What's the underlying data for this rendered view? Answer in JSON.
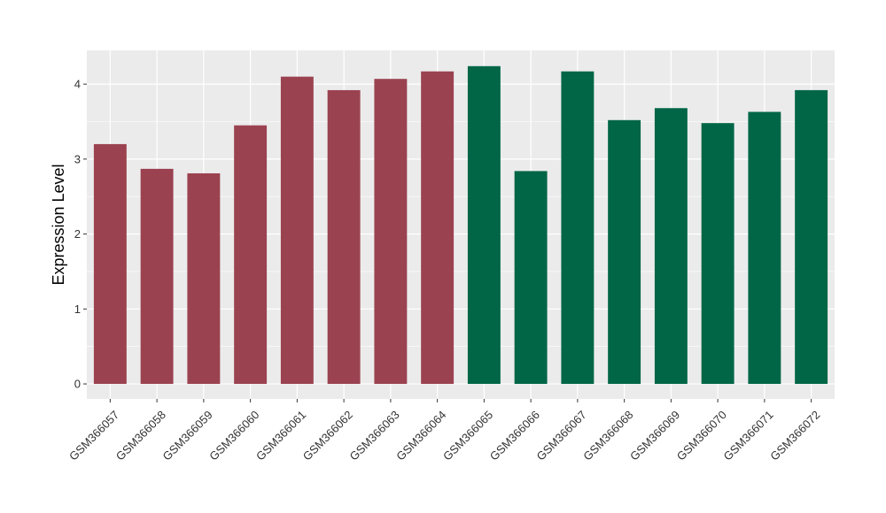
{
  "chart_data": {
    "type": "bar",
    "ylabel": "Expression Level",
    "xlabel": "",
    "title": "",
    "ylim": [
      -0.2,
      4.45
    ],
    "y_ticks": [
      0,
      1,
      2,
      3,
      4
    ],
    "grid": true,
    "legend": "none",
    "categories": [
      "GSM366057",
      "GSM366058",
      "GSM366059",
      "GSM366060",
      "GSM366061",
      "GSM366062",
      "GSM366063",
      "GSM366064",
      "GSM366065",
      "GSM366066",
      "GSM366067",
      "GSM366068",
      "GSM366069",
      "GSM366070",
      "GSM366071",
      "GSM366072"
    ],
    "values": [
      3.2,
      2.87,
      2.81,
      3.45,
      4.1,
      3.92,
      4.07,
      4.17,
      4.24,
      2.84,
      4.17,
      3.52,
      3.68,
      3.48,
      3.63,
      3.92
    ],
    "groups": [
      0,
      0,
      0,
      0,
      0,
      0,
      0,
      0,
      1,
      1,
      1,
      1,
      1,
      1,
      1,
      1
    ],
    "colors": [
      "#9B4250",
      "#006646"
    ],
    "panel_color": "#EBEBEB",
    "grid_color": "#FFFFFF"
  }
}
